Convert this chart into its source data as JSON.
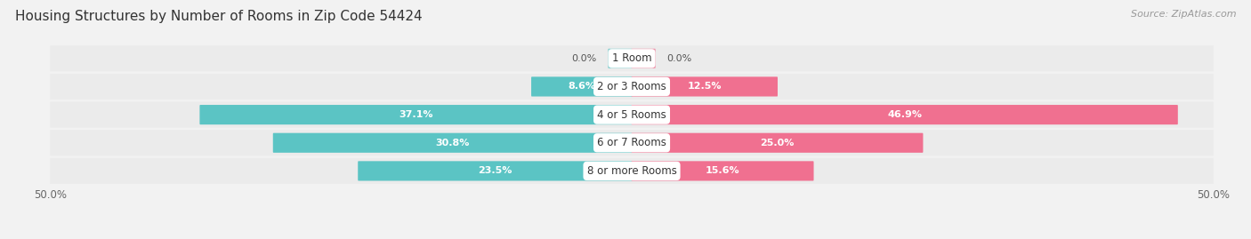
{
  "title": "Housing Structures by Number of Rooms in Zip Code 54424",
  "source": "Source: ZipAtlas.com",
  "categories": [
    "1 Room",
    "2 or 3 Rooms",
    "4 or 5 Rooms",
    "6 or 7 Rooms",
    "8 or more Rooms"
  ],
  "owner_values": [
    0.0,
    8.6,
    37.1,
    30.8,
    23.5
  ],
  "renter_values": [
    0.0,
    12.5,
    46.9,
    25.0,
    15.6
  ],
  "owner_color": "#5BC4C4",
  "renter_color": "#F07090",
  "bg_color": "#f2f2f2",
  "bar_bg_color": "#e2e2e2",
  "row_bg_color": "#ebebeb",
  "axis_limit": 50.0,
  "bar_height": 0.62,
  "title_fontsize": 11,
  "source_fontsize": 8,
  "label_fontsize": 8,
  "cat_fontsize": 8.5
}
